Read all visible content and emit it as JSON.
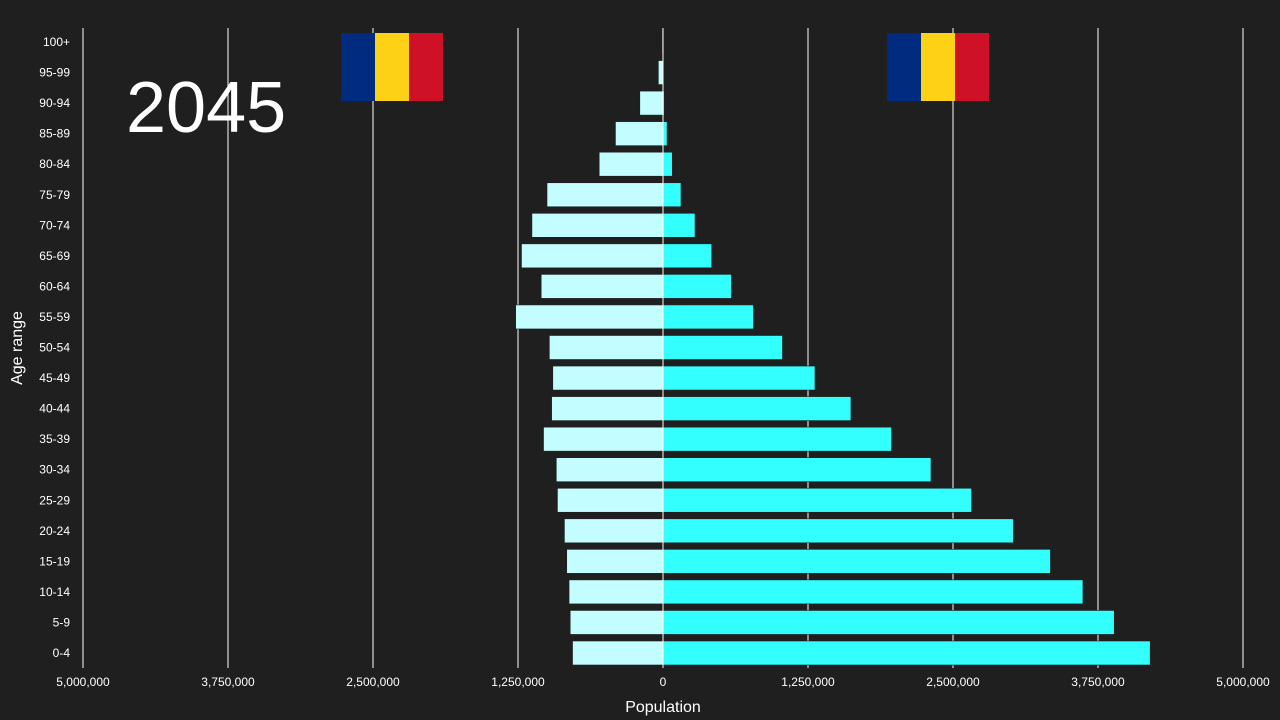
{
  "chart_data": {
    "type": "bar",
    "orientation": "horizontal-pyramid",
    "year_label": "2045",
    "xlabel": "Population",
    "ylabel": "Age range",
    "xlim": [
      -5000000,
      5000000
    ],
    "x_ticks": [
      -5000000,
      -3750000,
      -2500000,
      -1250000,
      0,
      1250000,
      2500000,
      3750000,
      5000000
    ],
    "x_tick_labels": [
      "5,000,000",
      "3,750,000",
      "2,500,000",
      "1,250,000",
      "0",
      "1,250,000",
      "2,500,000",
      "3,750,000",
      "5,000,000"
    ],
    "grid": true,
    "categories": [
      "0-4",
      "5-9",
      "10-14",
      "15-19",
      "20-24",
      "25-29",
      "30-34",
      "35-39",
      "40-44",
      "45-49",
      "50-54",
      "55-59",
      "60-64",
      "65-69",
      "70-74",
      "75-79",
      "80-84",
      "85-89",
      "90-94",
      "95-99",
      "100+"
    ],
    "series": [
      {
        "side": "left",
        "color": "#c4fdff",
        "values": [
          780000,
          800000,
          810000,
          830000,
          850000,
          910000,
          920000,
          1030000,
          960000,
          950000,
          980000,
          1270000,
          1050000,
          1220000,
          1130000,
          1000000,
          550000,
          410000,
          200000,
          40000,
          8000
        ]
      },
      {
        "side": "right",
        "color": "#33ffff",
        "values": [
          4200000,
          3890000,
          3620000,
          3340000,
          3020000,
          2660000,
          2310000,
          1970000,
          1620000,
          1310000,
          1030000,
          780000,
          590000,
          420000,
          276000,
          155000,
          80000,
          35000,
          10000,
          3000,
          1000
        ]
      }
    ],
    "flags": [
      {
        "country_colors": [
          "#002b7f",
          "#fcd116",
          "#ce1126"
        ]
      },
      {
        "country_colors": [
          "#002b7f",
          "#fcd116",
          "#ce1126"
        ]
      }
    ],
    "background": "#1f1f1f"
  }
}
